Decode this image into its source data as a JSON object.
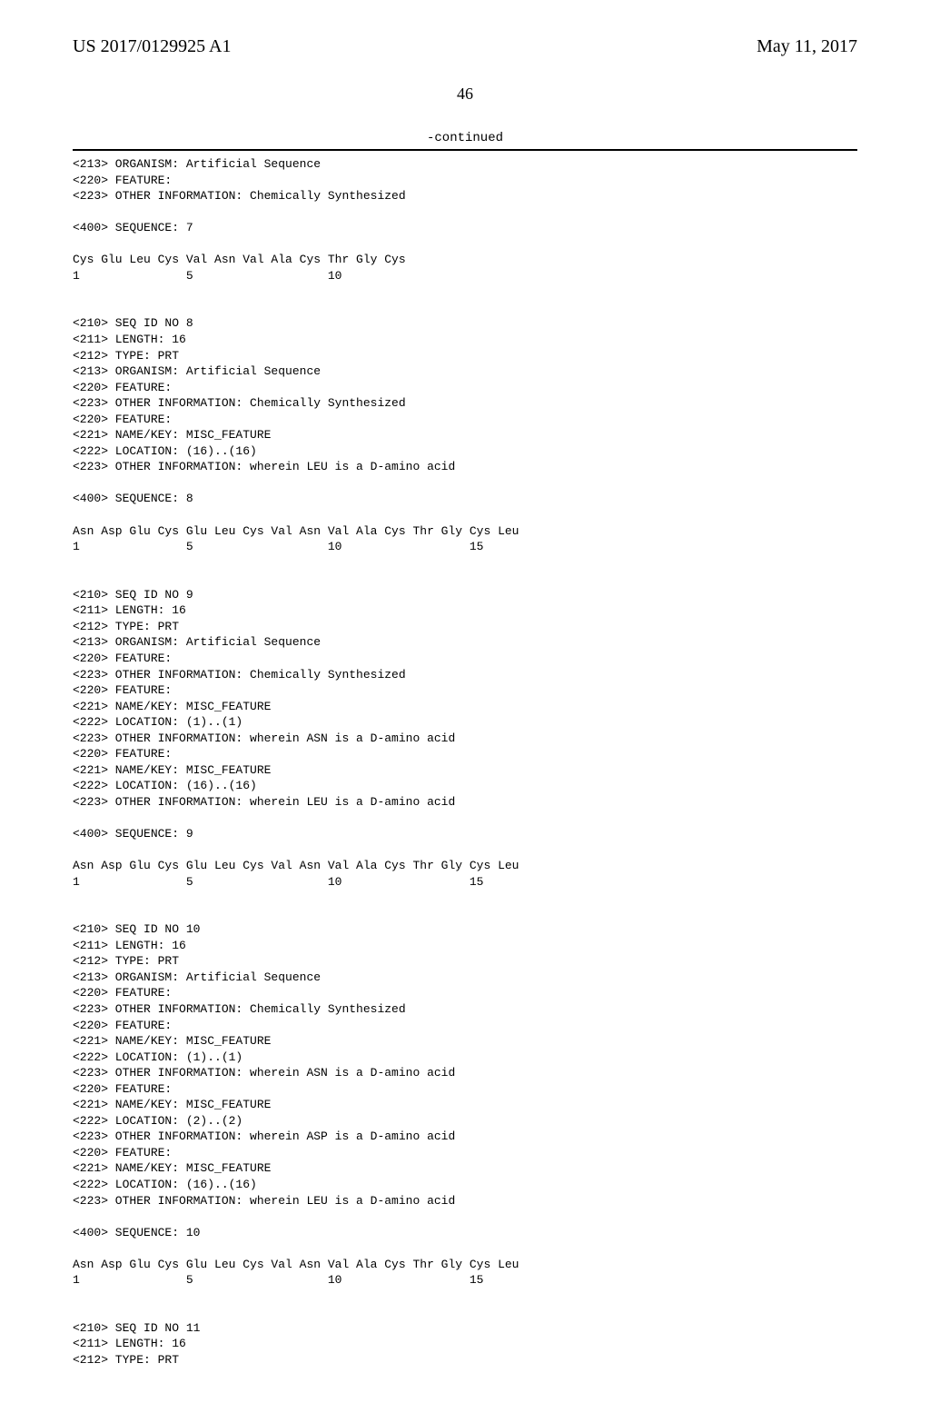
{
  "header": {
    "pub_number": "US 2017/0129925 A1",
    "pub_date": "May 11, 2017",
    "page_number": "46",
    "continued_label": "-continued"
  },
  "listing": "<213> ORGANISM: Artificial Sequence\n<220> FEATURE:\n<223> OTHER INFORMATION: Chemically Synthesized\n\n<400> SEQUENCE: 7\n\nCys Glu Leu Cys Val Asn Val Ala Cys Thr Gly Cys\n1               5                   10\n\n\n<210> SEQ ID NO 8\n<211> LENGTH: 16\n<212> TYPE: PRT\n<213> ORGANISM: Artificial Sequence\n<220> FEATURE:\n<223> OTHER INFORMATION: Chemically Synthesized\n<220> FEATURE:\n<221> NAME/KEY: MISC_FEATURE\n<222> LOCATION: (16)..(16)\n<223> OTHER INFORMATION: wherein LEU is a D-amino acid\n\n<400> SEQUENCE: 8\n\nAsn Asp Glu Cys Glu Leu Cys Val Asn Val Ala Cys Thr Gly Cys Leu\n1               5                   10                  15\n\n\n<210> SEQ ID NO 9\n<211> LENGTH: 16\n<212> TYPE: PRT\n<213> ORGANISM: Artificial Sequence\n<220> FEATURE:\n<223> OTHER INFORMATION: Chemically Synthesized\n<220> FEATURE:\n<221> NAME/KEY: MISC_FEATURE\n<222> LOCATION: (1)..(1)\n<223> OTHER INFORMATION: wherein ASN is a D-amino acid\n<220> FEATURE:\n<221> NAME/KEY: MISC_FEATURE\n<222> LOCATION: (16)..(16)\n<223> OTHER INFORMATION: wherein LEU is a D-amino acid\n\n<400> SEQUENCE: 9\n\nAsn Asp Glu Cys Glu Leu Cys Val Asn Val Ala Cys Thr Gly Cys Leu\n1               5                   10                  15\n\n\n<210> SEQ ID NO 10\n<211> LENGTH: 16\n<212> TYPE: PRT\n<213> ORGANISM: Artificial Sequence\n<220> FEATURE:\n<223> OTHER INFORMATION: Chemically Synthesized\n<220> FEATURE:\n<221> NAME/KEY: MISC_FEATURE\n<222> LOCATION: (1)..(1)\n<223> OTHER INFORMATION: wherein ASN is a D-amino acid\n<220> FEATURE:\n<221> NAME/KEY: MISC_FEATURE\n<222> LOCATION: (2)..(2)\n<223> OTHER INFORMATION: wherein ASP is a D-amino acid\n<220> FEATURE:\n<221> NAME/KEY: MISC_FEATURE\n<222> LOCATION: (16)..(16)\n<223> OTHER INFORMATION: wherein LEU is a D-amino acid\n\n<400> SEQUENCE: 10\n\nAsn Asp Glu Cys Glu Leu Cys Val Asn Val Ala Cys Thr Gly Cys Leu\n1               5                   10                  15\n\n\n<210> SEQ ID NO 11\n<211> LENGTH: 16\n<212> TYPE: PRT"
}
